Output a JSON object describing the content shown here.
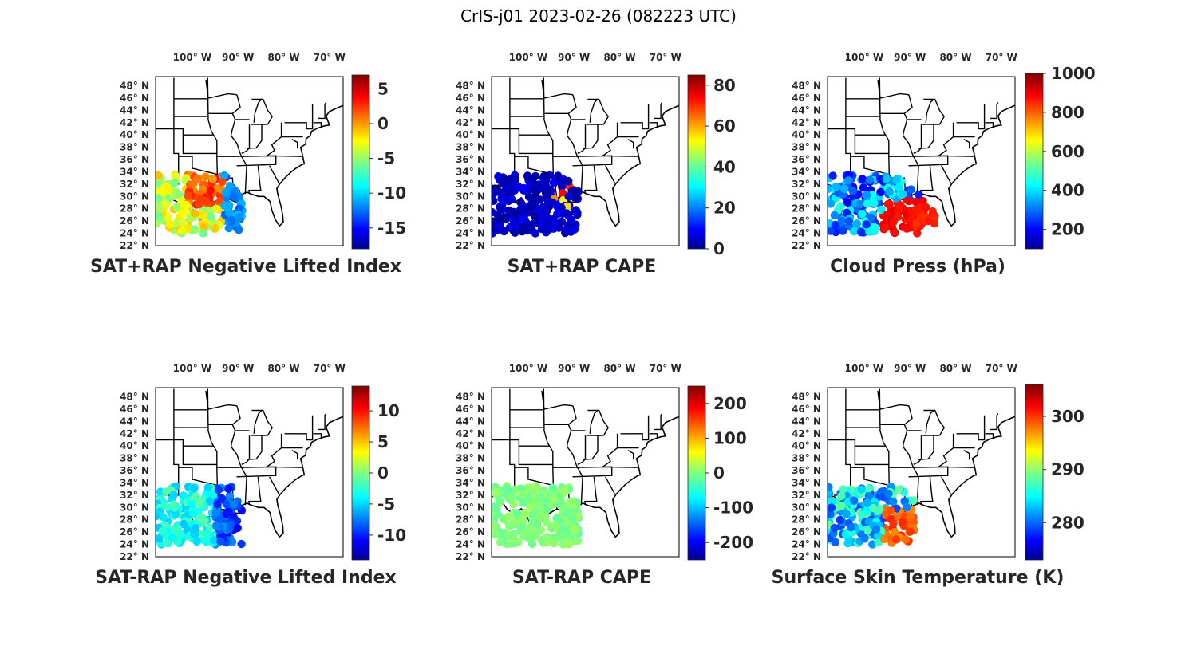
{
  "figure_title": "CrIS-j01 2023-02-26 (082223 UTC)",
  "longitude_labels": [
    "100° W",
    "90° W",
    "80° W",
    "70° W"
  ],
  "latitude_labels": [
    "48° N",
    "46° N",
    "44° N",
    "42° N",
    "40° N",
    "38° N",
    "36° N",
    "34° N",
    "32° N",
    "30° N",
    "28° N",
    "26° N",
    "24° N",
    "22° N"
  ],
  "colormap": "jet",
  "map_extent": {
    "lon": [
      -108,
      -67
    ],
    "lat": [
      22,
      49.5
    ]
  },
  "panels": [
    {
      "id": "sat-rap-neg-lifted-index-plus",
      "title": "SAT+RAP Negative Lifted Index",
      "colorbar": {
        "min": -18,
        "max": 7,
        "ticks": [
          "5",
          "0",
          "-5",
          "-10",
          "-15"
        ],
        "tick_values": [
          5,
          0,
          -5,
          -10,
          -15
        ]
      },
      "pattern": "li_plus"
    },
    {
      "id": "sat-rap-cape-plus",
      "title": "SAT+RAP CAPE",
      "colorbar": {
        "min": 0,
        "max": 85,
        "ticks": [
          "80",
          "60",
          "40",
          "20",
          "0"
        ],
        "tick_values": [
          80,
          60,
          40,
          20,
          0
        ]
      },
      "pattern": "cape_plus"
    },
    {
      "id": "cloud-press",
      "title": "Cloud Press (hPa)",
      "colorbar": {
        "min": 100,
        "max": 1000,
        "ticks": [
          "1000",
          "800",
          "600",
          "400",
          "200"
        ],
        "tick_values": [
          1000,
          800,
          600,
          400,
          200
        ]
      },
      "pattern": "cloud"
    },
    {
      "id": "sat-rap-neg-lifted-index-minus",
      "title": "SAT-RAP Negative Lifted Index",
      "colorbar": {
        "min": -14,
        "max": 14,
        "ticks": [
          "10",
          "5",
          "0",
          "-5",
          "-10"
        ],
        "tick_values": [
          10,
          5,
          0,
          -5,
          -10
        ]
      },
      "pattern": "li_minus"
    },
    {
      "id": "sat-rap-cape-minus",
      "title": "SAT-RAP CAPE",
      "colorbar": {
        "min": -250,
        "max": 250,
        "ticks": [
          "200",
          "100",
          "0",
          "-100",
          "-200"
        ],
        "tick_values": [
          200,
          100,
          0,
          -100,
          -200
        ]
      },
      "pattern": "cape_minus"
    },
    {
      "id": "surface-skin-temperature",
      "title": "Surface Skin Temperature (K)",
      "colorbar": {
        "min": 273,
        "max": 306,
        "ticks": [
          "300",
          "290",
          "280"
        ],
        "tick_values": [
          300,
          290,
          280
        ]
      },
      "pattern": "skin"
    }
  ]
}
